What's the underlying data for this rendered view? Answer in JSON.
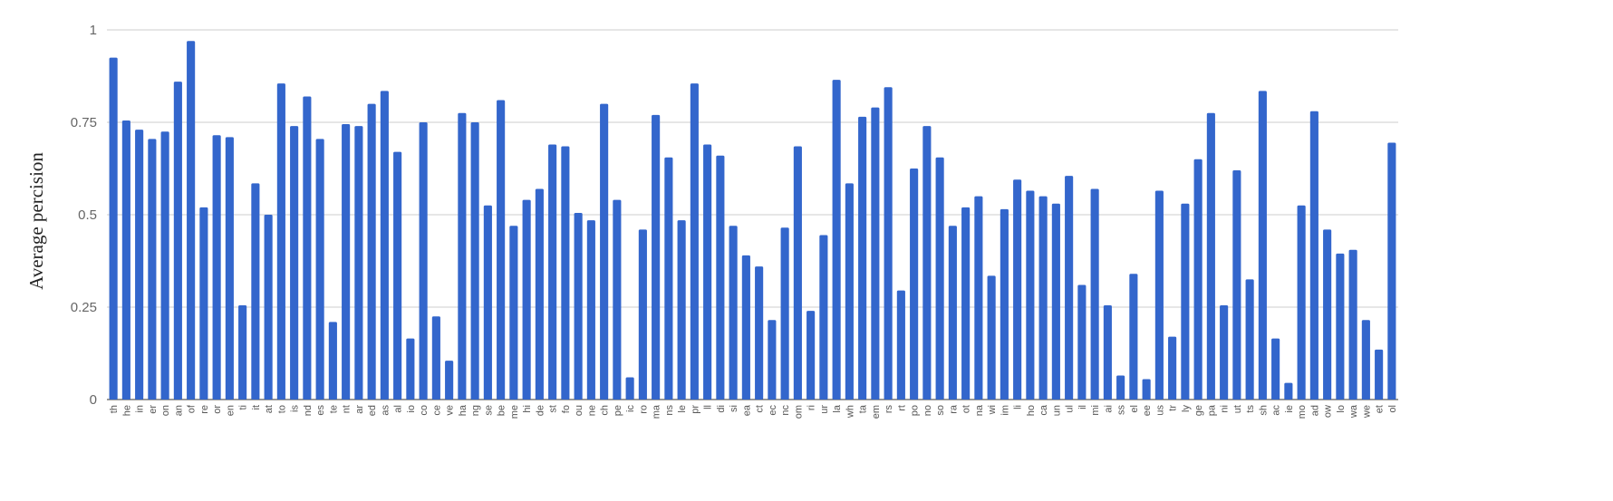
{
  "chart_data": {
    "type": "bar",
    "title": "",
    "xlabel": "",
    "ylabel": "Average percision",
    "ylim": [
      0,
      1
    ],
    "yticks": [
      0,
      0.25,
      0.5,
      0.75,
      1
    ],
    "ytick_labels": [
      "0",
      "0.25",
      "0.5",
      "0.75",
      "1"
    ],
    "grid": true,
    "bar_color": "#3366cc",
    "categories": [
      "th",
      "he",
      "in",
      "er",
      "on",
      "an",
      "of",
      "re",
      "or",
      "en",
      "ti",
      "it",
      "at",
      "to",
      "is",
      "nd",
      "es",
      "te",
      "nt",
      "ar",
      "ed",
      "as",
      "al",
      "io",
      "co",
      "ce",
      "ve",
      "ha",
      "ng",
      "se",
      "be",
      "me",
      "hi",
      "de",
      "st",
      "fo",
      "ou",
      "ne",
      "ch",
      "pe",
      "ic",
      "ro",
      "ma",
      "ns",
      "le",
      "pr",
      "ll",
      "di",
      "si",
      "ea",
      "ct",
      "ec",
      "nc",
      "om",
      "ri",
      "ur",
      "la",
      "wh",
      "ta",
      "em",
      "rs",
      "rt",
      "po",
      "no",
      "so",
      "ra",
      "ot",
      "na",
      "wi",
      "im",
      "li",
      "ho",
      "ca",
      "un",
      "ul",
      "il",
      "mi",
      "ai",
      "ss",
      "el",
      "ee",
      "us",
      "tr",
      "ly",
      "ge",
      "pa",
      "ni",
      "ut",
      "ts",
      "sh",
      "ac",
      "ie",
      "mo",
      "ad",
      "ow",
      "lo",
      "wa",
      "we",
      "et",
      "ol"
    ],
    "values": [
      0.925,
      0.755,
      0.73,
      0.705,
      0.725,
      0.86,
      0.97,
      0.52,
      0.715,
      0.71,
      0.255,
      0.585,
      0.5,
      0.855,
      0.74,
      0.82,
      0.705,
      0.21,
      0.745,
      0.74,
      0.8,
      0.835,
      0.67,
      0.165,
      0.75,
      0.225,
      0.105,
      0.775,
      0.75,
      0.525,
      0.81,
      0.47,
      0.54,
      0.57,
      0.69,
      0.685,
      0.505,
      0.485,
      0.8,
      0.54,
      0.06,
      0.46,
      0.77,
      0.655,
      0.485,
      0.855,
      0.69,
      0.66,
      0.47,
      0.39,
      0.36,
      0.215,
      0.465,
      0.685,
      0.24,
      0.445,
      0.865,
      0.585,
      0.765,
      0.79,
      0.845,
      0.295,
      0.625,
      0.74,
      0.655,
      0.47,
      0.52,
      0.55,
      0.335,
      0.515,
      0.595,
      0.565,
      0.55,
      0.53,
      0.605,
      0.31,
      0.57,
      0.255,
      0.065,
      0.34,
      0.055,
      0.565,
      0.17,
      0.53,
      0.65,
      0.775,
      0.255,
      0.62,
      0.325,
      0.835,
      0.165,
      0.045,
      0.525,
      0.78,
      0.46,
      0.395,
      0.405,
      0.215,
      0.135,
      0.695
    ]
  }
}
